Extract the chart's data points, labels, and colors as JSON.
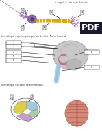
{
  "title_top": "a seguir e cite suas funções",
  "section1_label": "Identifique as principais partes do Sist. Nerv. Central",
  "section2_label": "Identifique os lobos telencefálicos.",
  "background_color": "#ffffff",
  "neuron_colors": {
    "cell_body": "#8855aa",
    "dendrites_left": "#9966bb",
    "axon": "#ddaa00",
    "terminals": "#9966bb",
    "nucleus": "#226622"
  },
  "brain_colors": {
    "cerebrum": "#c8c8c8",
    "brainstem": "#e06060",
    "cerebellum": "#b8b8b8",
    "spinal_cord": "#aaccee"
  },
  "lobe_colors": {
    "frontal": "#ddcc44",
    "parietal": "#99ccdd",
    "temporal": "#cc99cc",
    "occipital": "#aaccaa"
  },
  "pdf_color": "#1a1a2e"
}
